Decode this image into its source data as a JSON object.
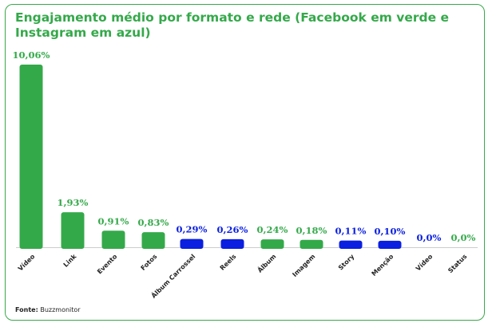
{
  "chart_data": {
    "type": "bar",
    "title": "Engajamento médio por formato e rede (Facebook em verde e Instagram em azul)",
    "xlabel": "",
    "ylabel": "",
    "ylim": [
      0,
      10.06
    ],
    "grid": false,
    "categories": [
      "Vídeo",
      "Link",
      "Evento",
      "Fotos",
      "Álbum Carrossel",
      "Reels",
      "Álbum",
      "Imagem",
      "Story",
      "Menção",
      "Vídeo",
      "Status"
    ],
    "values": [
      10.06,
      1.93,
      0.91,
      0.83,
      0.29,
      0.26,
      0.24,
      0.18,
      0.11,
      0.1,
      0.0,
      0.0
    ],
    "labels": [
      "10,06%",
      "1,93%",
      "0,91%",
      "0,83%",
      "0,29%",
      "0,26%",
      "0,24%",
      "0,18%",
      "0,11%",
      "0,10%",
      "0,0%",
      "0,0%"
    ],
    "networks": [
      "Facebook",
      "Facebook",
      "Facebook",
      "Facebook",
      "Instagram",
      "Instagram",
      "Facebook",
      "Facebook",
      "Instagram",
      "Instagram",
      "Instagram",
      "Facebook"
    ],
    "colors": {
      "Facebook": "#34a94a",
      "Instagram": "#0a1fe0"
    }
  },
  "source": {
    "label": "Fonte:",
    "value": "Buzzmonitor"
  }
}
